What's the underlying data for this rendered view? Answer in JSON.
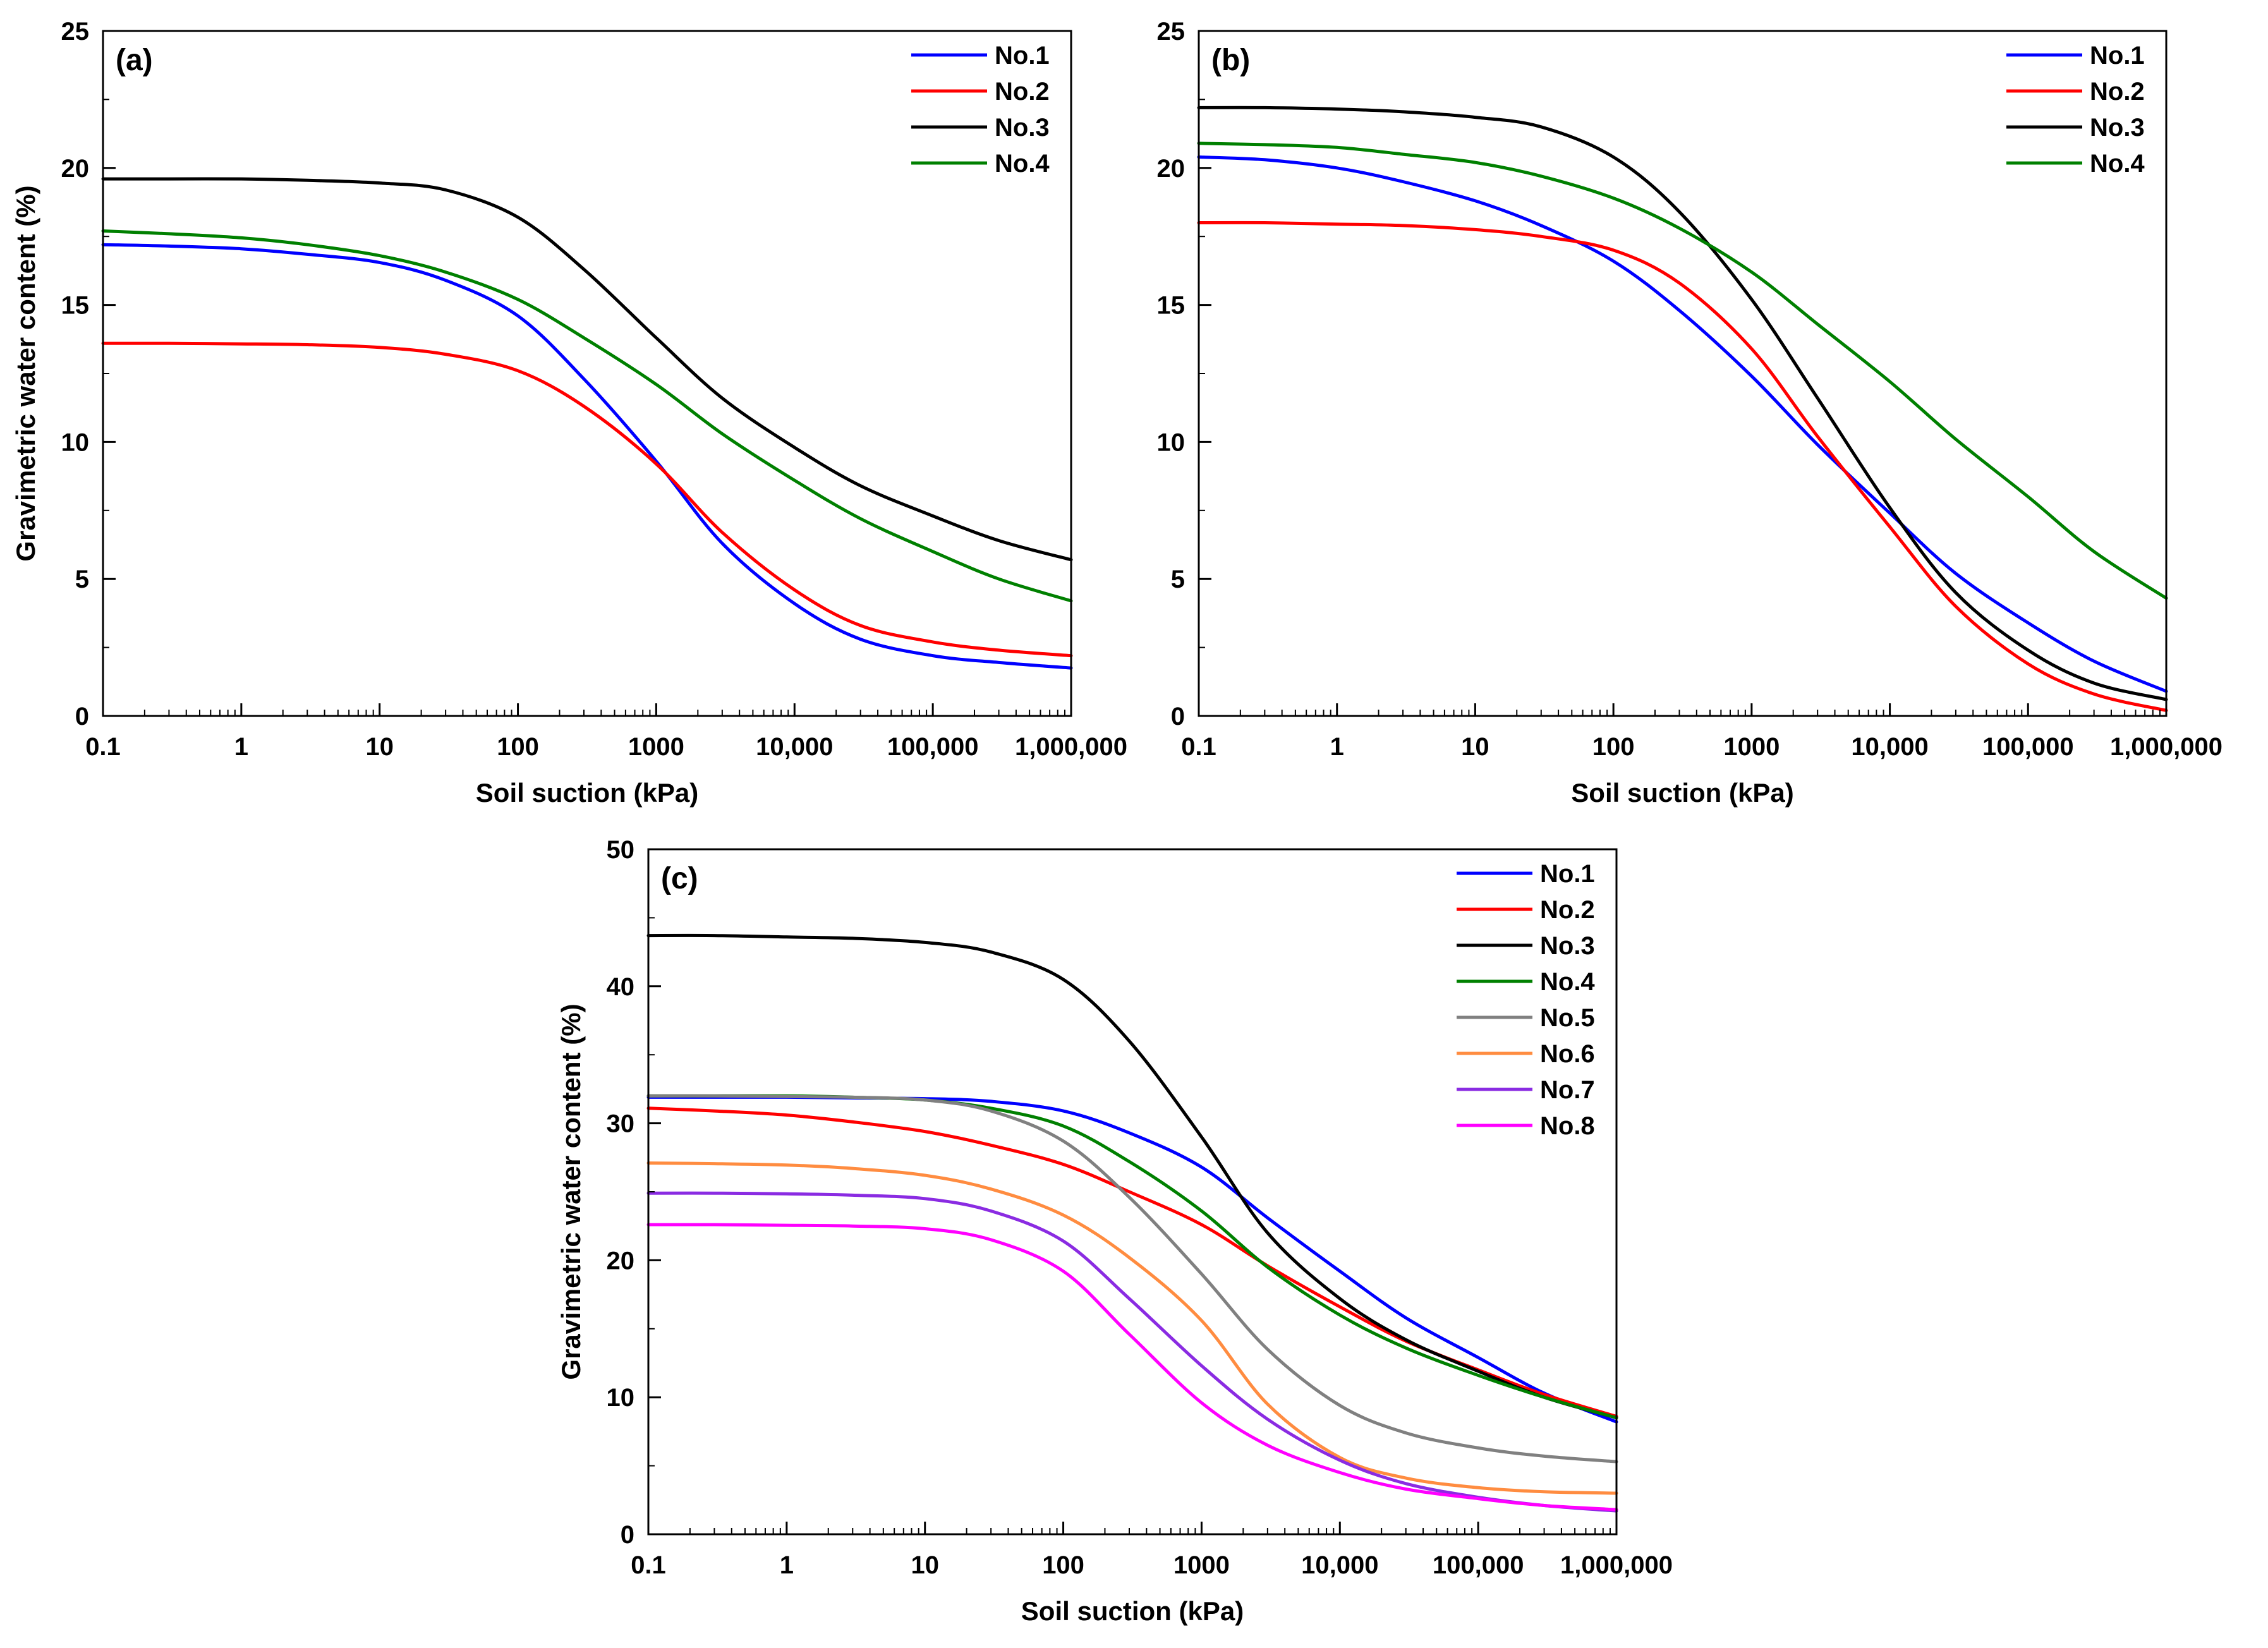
{
  "chart_data": [
    {
      "type": "line",
      "panel_label": "(a)",
      "xlabel": "Soil suction (kPa)",
      "ylabel": "Gravimetric water content (%)",
      "xscale": "log",
      "xlim": [
        0.1,
        1000000
      ],
      "ylim": [
        0,
        25
      ],
      "xticks": [
        0.1,
        1,
        10,
        100,
        1000,
        10000,
        100000,
        1000000
      ],
      "xtick_labels": [
        "0.1",
        "1",
        "10",
        "100",
        "1000",
        "10,000",
        "100,000",
        "1,000,000"
      ],
      "yticks": [
        0,
        5,
        10,
        15,
        20,
        25
      ],
      "ytick_labels": [
        "0",
        "5",
        "10",
        "15",
        "20",
        "25"
      ],
      "legend_position": "top-right",
      "x": [
        0.1,
        0.3,
        1,
        3,
        10,
        30,
        100,
        300,
        1000,
        3000,
        10000,
        30000,
        100000,
        300000,
        1000000
      ],
      "series": [
        {
          "name": "No.1",
          "color": "#0000ff",
          "values": [
            17.2,
            17.15,
            17.05,
            16.85,
            16.55,
            15.9,
            14.6,
            12.3,
            9.3,
            6.3,
            4.1,
            2.8,
            2.2,
            1.95,
            1.75
          ]
        },
        {
          "name": "No.2",
          "color": "#ff0000",
          "values": [
            13.6,
            13.6,
            13.58,
            13.55,
            13.45,
            13.2,
            12.6,
            11.3,
            9.2,
            6.7,
            4.6,
            3.3,
            2.7,
            2.4,
            2.2
          ]
        },
        {
          "name": "No.3",
          "color": "#000000",
          "values": [
            19.6,
            19.6,
            19.6,
            19.55,
            19.45,
            19.2,
            18.2,
            16.3,
            13.8,
            11.6,
            9.8,
            8.4,
            7.3,
            6.4,
            5.7
          ]
        },
        {
          "name": "No.4",
          "color": "#008000",
          "values": [
            17.7,
            17.6,
            17.45,
            17.2,
            16.8,
            16.2,
            15.2,
            13.8,
            12.1,
            10.3,
            8.6,
            7.2,
            6.0,
            5.0,
            4.2
          ]
        }
      ]
    },
    {
      "type": "line",
      "panel_label": "(b)",
      "xlabel": "Soil suction (kPa)",
      "ylabel": "",
      "xscale": "log",
      "xlim": [
        0.1,
        1000000
      ],
      "ylim": [
        0,
        25
      ],
      "xticks": [
        0.1,
        1,
        10,
        100,
        1000,
        10000,
        100000,
        1000000
      ],
      "xtick_labels": [
        "0.1",
        "1",
        "10",
        "100",
        "1000",
        "10,000",
        "100,000",
        "1,000,000"
      ],
      "yticks": [
        0,
        5,
        10,
        15,
        20,
        25
      ],
      "ytick_labels": [
        "0",
        "5",
        "10",
        "15",
        "20",
        "25"
      ],
      "legend_position": "top-right",
      "x": [
        0.1,
        0.3,
        1,
        3,
        10,
        30,
        100,
        300,
        1000,
        3000,
        10000,
        30000,
        100000,
        300000,
        1000000
      ],
      "series": [
        {
          "name": "No.1",
          "color": "#0000ff",
          "values": [
            20.4,
            20.3,
            20.0,
            19.5,
            18.8,
            17.9,
            16.6,
            14.8,
            12.4,
            9.9,
            7.4,
            5.2,
            3.4,
            2.0,
            0.9
          ]
        },
        {
          "name": "No.2",
          "color": "#ff0000",
          "values": [
            18.0,
            18.0,
            17.95,
            17.9,
            17.75,
            17.5,
            17.0,
            15.8,
            13.4,
            10.2,
            6.9,
            4.0,
            1.9,
            0.8,
            0.2
          ]
        },
        {
          "name": "No.3",
          "color": "#000000",
          "values": [
            22.2,
            22.2,
            22.15,
            22.05,
            21.85,
            21.5,
            20.4,
            18.4,
            15.2,
            11.6,
            7.6,
            4.5,
            2.4,
            1.2,
            0.6
          ]
        },
        {
          "name": "No.4",
          "color": "#008000",
          "values": [
            20.9,
            20.85,
            20.75,
            20.5,
            20.2,
            19.7,
            18.9,
            17.8,
            16.2,
            14.3,
            12.2,
            10.1,
            8.0,
            6.0,
            4.3
          ]
        }
      ]
    },
    {
      "type": "line",
      "panel_label": "(c)",
      "xlabel": "Soil suction (kPa)",
      "ylabel": "Gravimetric water content (%)",
      "xscale": "log",
      "xlim": [
        0.1,
        1000000
      ],
      "ylim": [
        0,
        50
      ],
      "xticks": [
        0.1,
        1,
        10,
        100,
        1000,
        10000,
        100000,
        1000000
      ],
      "xtick_labels": [
        "0.1",
        "1",
        "10",
        "100",
        "1000",
        "10,000",
        "100,000",
        "1,000,000"
      ],
      "yticks": [
        0,
        10,
        20,
        30,
        40,
        50
      ],
      "ytick_labels": [
        "0",
        "10",
        "20",
        "30",
        "40",
        "50"
      ],
      "legend_position": "top-right",
      "x": [
        0.1,
        0.3,
        1,
        3,
        10,
        30,
        100,
        300,
        1000,
        3000,
        10000,
        30000,
        100000,
        300000,
        1000000
      ],
      "series": [
        {
          "name": "No.1",
          "color": "#0000ff",
          "values": [
            31.9,
            31.9,
            31.9,
            31.85,
            31.8,
            31.6,
            30.9,
            29.3,
            26.8,
            23.1,
            19.2,
            15.8,
            12.9,
            10.3,
            8.2
          ]
        },
        {
          "name": "No.2",
          "color": "#ff0000",
          "values": [
            31.1,
            30.9,
            30.6,
            30.1,
            29.4,
            28.4,
            27.0,
            25.0,
            22.6,
            19.6,
            16.6,
            14.1,
            12.0,
            10.2,
            8.6
          ]
        },
        {
          "name": "No.3",
          "color": "#000000",
          "values": [
            43.7,
            43.7,
            43.6,
            43.5,
            43.2,
            42.5,
            40.5,
            36.0,
            29.0,
            22.0,
            17.2,
            14.2,
            11.9,
            10.0,
            8.5
          ]
        },
        {
          "name": "No.4",
          "color": "#008000",
          "values": [
            32.0,
            32.0,
            32.0,
            31.9,
            31.7,
            31.1,
            29.8,
            27.2,
            23.6,
            19.5,
            16.0,
            13.6,
            11.6,
            10.0,
            8.5
          ]
        },
        {
          "name": "No.5",
          "color": "#808080",
          "values": [
            32.0,
            32.0,
            31.95,
            31.9,
            31.7,
            30.9,
            28.7,
            24.6,
            19.0,
            13.5,
            9.4,
            7.4,
            6.3,
            5.7,
            5.3
          ]
        },
        {
          "name": "No.6",
          "color": "#ff8c40",
          "values": [
            27.1,
            27.05,
            26.95,
            26.7,
            26.2,
            25.2,
            23.3,
            20.2,
            15.6,
            9.5,
            5.6,
            4.1,
            3.4,
            3.1,
            3.0
          ]
        },
        {
          "name": "No.7",
          "color": "#8a2be2",
          "values": [
            24.9,
            24.9,
            24.85,
            24.75,
            24.5,
            23.6,
            21.4,
            17.2,
            12.3,
            8.4,
            5.4,
            3.7,
            2.7,
            2.1,
            1.7
          ]
        },
        {
          "name": "No.8",
          "color": "#ff00ff",
          "values": [
            22.6,
            22.6,
            22.55,
            22.5,
            22.3,
            21.5,
            19.2,
            14.6,
            9.6,
            6.5,
            4.5,
            3.3,
            2.6,
            2.1,
            1.8
          ]
        }
      ]
    }
  ]
}
